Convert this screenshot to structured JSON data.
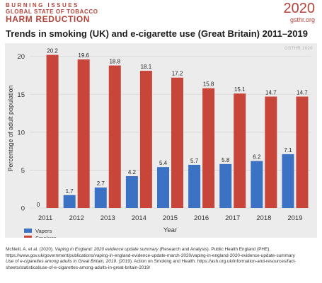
{
  "header": {
    "brand_line1": "BURNING ISSUES",
    "brand_line2": "GLOBAL STATE OF TOBACCO",
    "brand_line3": "HARM REDUCTION",
    "year": "2020",
    "site": "gsthr.org"
  },
  "colors": {
    "accent": "#b5443a",
    "smokers": "#c8453a",
    "vapers": "#3c72c4",
    "background": "#ececec"
  },
  "chart_data": {
    "type": "bar",
    "title": "Trends in smoking (UK) and e-cigarette use (Great Britain) 2011–2019",
    "watermark": "GSTHR 2020",
    "xlabel": "Year",
    "ylabel": "Percentage of adult population",
    "categories": [
      "2011",
      "2012",
      "2013",
      "2014",
      "2015",
      "2016",
      "2017",
      "2018",
      "2019"
    ],
    "ylim": [
      0,
      21
    ],
    "yticks": [
      "0",
      "5",
      "10",
      "15",
      "20"
    ],
    "grid": true,
    "legend_position": "bottom-left",
    "series": [
      {
        "name": "Vapers",
        "color": "#3c72c4",
        "values": [
          0,
          1.7,
          2.7,
          4.2,
          5.4,
          5.7,
          5.8,
          6.2,
          7.1
        ],
        "labels": [
          "0",
          "1.7",
          "2.7",
          "4.2",
          "5.4",
          "5.7",
          "5.8",
          "6.2",
          "7.1"
        ]
      },
      {
        "name": "Smokers",
        "color": "#c8453a",
        "values": [
          20.2,
          19.6,
          18.8,
          18.1,
          17.2,
          15.8,
          15.1,
          14.7,
          14.7
        ],
        "labels": [
          "20.2",
          "19.6",
          "18.8",
          "18.1",
          "17.2",
          "15.8",
          "15.1",
          "14.7",
          "14.7"
        ]
      }
    ]
  },
  "footer": {
    "ref1_prefix": "McNeill, A. et al. (2020). ",
    "ref1_title": "Vaping in England: 2020 evidence update summary",
    "ref1_suffix": " (Research and Analysis). Public Health England (PHE). https://www.gov.uk/government/publications/vaping-in-england-evidence-update-march-2020/vaping-in-england-2020-evidence-update-summary",
    "ref2_title": "Use of e-cigarettes among adults in Great Britain, 2019",
    "ref2_suffix": ". (2019). Action on Smoking and Health. https://ash.org.uk/information-and-resources/fact-sheets/statistical/use-of-e-cigarettes-among-adults-in-great-britain-2019/"
  }
}
